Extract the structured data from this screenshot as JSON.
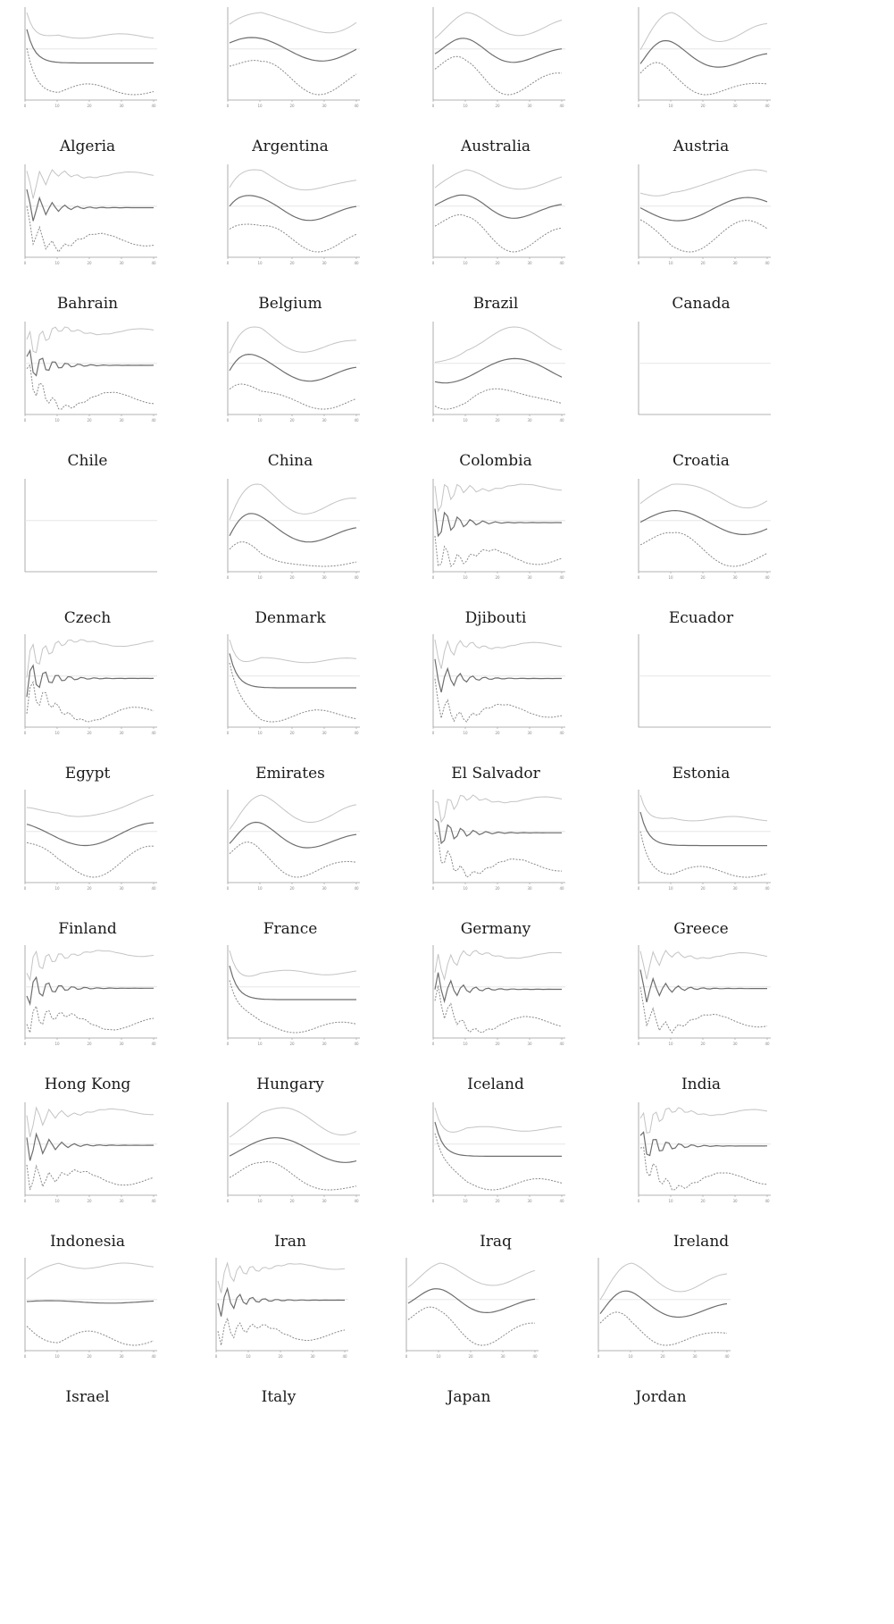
{
  "figure": {
    "colors": {
      "upper_band": "#c4c4c4",
      "response": "#6e6e6e",
      "lower_band": "#8a8a8a",
      "zero_line": "#e2e2e2",
      "axis": "#9a9a9a"
    }
  },
  "chart_data": [
    {
      "type": "line",
      "title": "Algeria",
      "xlim": [
        0,
        40
      ],
      "x_ticks": [
        0,
        10,
        20,
        30,
        40
      ],
      "shape": {
        "b": 0.42,
        "s": 0.38,
        "o": -1
      },
      "series": [
        {
          "name": "",
          "values": []
        },
        {
          "name": "",
          "values": []
        },
        {
          "name": "",
          "values": []
        }
      ]
    },
    {
      "type": "line",
      "title": "Argentina",
      "xlim": [
        0,
        40
      ],
      "x_ticks": [
        0,
        10,
        20,
        30,
        40
      ],
      "shape": {
        "b": 0.4,
        "s": 0.38,
        "o": 1
      }
    },
    {
      "type": "line",
      "title": "Australia",
      "xlim": [
        0,
        40
      ],
      "x_ticks": [
        0,
        10,
        20,
        30,
        40
      ],
      "shape": {
        "b": 0.4,
        "s": 0.38,
        "o": 2
      }
    },
    {
      "type": "line",
      "title": "Austria",
      "xlim": [
        0,
        40
      ],
      "x_ticks": [
        0,
        10,
        20,
        30,
        40
      ],
      "shape": {
        "b": 0.4,
        "s": 0.38,
        "o": 2
      }
    },
    {
      "type": "line",
      "title": "Bahrain",
      "xlim": [
        0,
        40
      ],
      "x_ticks": [
        0,
        10,
        20,
        30,
        40
      ],
      "shape": {
        "b": 0.4,
        "s": 0.38,
        "o": 3
      }
    },
    {
      "type": "line",
      "title": "Belgium",
      "xlim": [
        0,
        40
      ],
      "x_ticks": [
        0,
        10,
        20,
        30,
        40
      ],
      "shape": {
        "b": 0.4,
        "s": 0.38,
        "o": 2
      }
    },
    {
      "type": "line",
      "title": "Brazil",
      "xlim": [
        0,
        40
      ],
      "x_ticks": [
        0,
        10,
        20,
        30,
        40
      ],
      "shape": {
        "b": 0.4,
        "s": 0.38,
        "o": 2
      }
    },
    {
      "type": "line",
      "title": "Canada",
      "xlim": [
        0,
        40
      ],
      "x_ticks": [
        0,
        10,
        20,
        30,
        40
      ],
      "shape": {
        "b": 0.4,
        "s": 0.38,
        "o": 1
      }
    },
    {
      "type": "line",
      "title": "Chile",
      "xlim": [
        0,
        40
      ],
      "x_ticks": [
        0,
        10,
        20,
        30,
        40
      ],
      "shape": {
        "b": 0.4,
        "s": 0.38,
        "o": 3
      }
    },
    {
      "type": "line",
      "title": "China",
      "xlim": [
        0,
        40
      ],
      "x_ticks": [
        0,
        10,
        20,
        30,
        40
      ],
      "shape": {
        "b": 0.4,
        "s": 0.38,
        "o": 2
      }
    },
    {
      "type": "line",
      "title": "Colombia",
      "xlim": [
        0,
        40
      ],
      "x_ticks": [
        0,
        10,
        20,
        30,
        40
      ],
      "shape": {
        "b": 0.4,
        "s": 0.38,
        "o": 1
      }
    },
    {
      "type": "line",
      "title": "Croatia",
      "xlim": [
        0,
        40
      ],
      "x_ticks": [],
      "empty": true
    },
    {
      "type": "line",
      "title": "Czech",
      "xlim": [
        0,
        40
      ],
      "x_ticks": [],
      "empty": true
    },
    {
      "type": "line",
      "title": "Denmark",
      "xlim": [
        0,
        40
      ],
      "x_ticks": [
        0,
        10,
        20,
        30,
        40
      ],
      "shape": {
        "b": 0.4,
        "s": 0.38,
        "o": 2
      }
    },
    {
      "type": "line",
      "title": "Djibouti",
      "xlim": [
        0,
        40
      ],
      "x_ticks": [
        0,
        10,
        20,
        30,
        40
      ],
      "shape": {
        "b": 0.4,
        "s": 0.38,
        "o": 3
      }
    },
    {
      "type": "line",
      "title": "Ecuador",
      "xlim": [
        0,
        40
      ],
      "x_ticks": [
        0,
        10,
        20,
        30,
        40
      ],
      "shape": {
        "b": 0.4,
        "s": 0.38,
        "o": 1
      }
    },
    {
      "type": "line",
      "title": "Egypt",
      "xlim": [
        0,
        40
      ],
      "x_ticks": [
        0,
        10,
        20,
        30,
        40
      ],
      "shape": {
        "b": 0.4,
        "s": 0.38,
        "o": 3
      }
    },
    {
      "type": "line",
      "title": "Emirates",
      "xlim": [
        0,
        40
      ],
      "x_ticks": [
        0,
        10,
        20,
        30,
        40
      ],
      "shape": {
        "b": 0.4,
        "s": 0.38,
        "o": -1
      }
    },
    {
      "type": "line",
      "title": "El Salvador",
      "xlim": [
        0,
        40
      ],
      "x_ticks": [
        0,
        10,
        20,
        30,
        40
      ],
      "shape": {
        "b": 0.4,
        "s": 0.38,
        "o": 3
      }
    },
    {
      "type": "line",
      "title": "Estonia",
      "xlim": [
        0,
        40
      ],
      "x_ticks": [],
      "empty": true
    },
    {
      "type": "line",
      "title": "Finland",
      "xlim": [
        0,
        40
      ],
      "x_ticks": [
        0,
        10,
        20,
        30,
        40
      ],
      "shape": {
        "b": 0.4,
        "s": 0.38,
        "o": 1
      }
    },
    {
      "type": "line",
      "title": "France",
      "xlim": [
        0,
        40
      ],
      "x_ticks": [
        0,
        10,
        20,
        30,
        40
      ],
      "shape": {
        "b": 0.4,
        "s": 0.38,
        "o": 2
      }
    },
    {
      "type": "line",
      "title": "Germany",
      "xlim": [
        0,
        40
      ],
      "x_ticks": [
        0,
        10,
        20,
        30,
        40
      ],
      "shape": {
        "b": 0.4,
        "s": 0.38,
        "o": 3
      }
    },
    {
      "type": "line",
      "title": "Greece",
      "xlim": [
        0,
        40
      ],
      "x_ticks": [
        0,
        10,
        20,
        30,
        40
      ],
      "shape": {
        "b": 0.4,
        "s": 0.38,
        "o": -1
      }
    },
    {
      "type": "line",
      "title": "Hong Kong",
      "xlim": [
        0,
        40
      ],
      "x_ticks": [
        0,
        10,
        20,
        30,
        40
      ],
      "shape": {
        "b": 0.4,
        "s": 0.38,
        "o": 3
      }
    },
    {
      "type": "line",
      "title": "Hungary",
      "xlim": [
        0,
        40
      ],
      "x_ticks": [
        0,
        10,
        20,
        30,
        40
      ],
      "shape": {
        "b": 0.4,
        "s": 0.38,
        "o": -1
      }
    },
    {
      "type": "line",
      "title": "Iceland",
      "xlim": [
        0,
        40
      ],
      "x_ticks": [
        0,
        10,
        20,
        30,
        40
      ],
      "shape": {
        "b": 0.4,
        "s": 0.38,
        "o": 3
      }
    },
    {
      "type": "line",
      "title": "India",
      "xlim": [
        0,
        40
      ],
      "x_ticks": [
        0,
        10,
        20,
        30,
        40
      ],
      "shape": {
        "b": 0.4,
        "s": 0.38,
        "o": 3
      }
    },
    {
      "type": "line",
      "title": "Indonesia",
      "xlim": [
        0,
        40
      ],
      "x_ticks": [
        0,
        10,
        20,
        30,
        40
      ],
      "shape": {
        "b": 0.4,
        "s": 0.38,
        "o": 3
      }
    },
    {
      "type": "line",
      "title": "Iran",
      "xlim": [
        0,
        40
      ],
      "x_ticks": [
        0,
        10,
        20,
        30,
        40
      ],
      "shape": {
        "b": 0.4,
        "s": 0.38,
        "o": 1
      }
    },
    {
      "type": "line",
      "title": "Iraq",
      "xlim": [
        0,
        40
      ],
      "x_ticks": [
        0,
        10,
        20,
        30,
        40
      ],
      "shape": {
        "b": 0.4,
        "s": 0.38,
        "o": -1
      }
    },
    {
      "type": "line",
      "title": "Ireland",
      "xlim": [
        0,
        40
      ],
      "x_ticks": [
        0,
        10,
        20,
        30,
        40
      ],
      "shape": {
        "b": 0.4,
        "s": 0.38,
        "o": 3
      }
    },
    {
      "type": "line",
      "title": "Israel",
      "xlim": [
        0,
        40
      ],
      "x_ticks": [
        0,
        10,
        20,
        30,
        40
      ],
      "shape": {
        "b": 0.4,
        "s": 0.38,
        "o": -2
      }
    },
    {
      "type": "line",
      "title": "Italy",
      "xlim": [
        0,
        40
      ],
      "x_ticks": [
        0,
        10,
        20,
        30,
        40
      ],
      "shape": {
        "b": 0.4,
        "s": 0.38,
        "o": 3
      }
    },
    {
      "type": "line",
      "title": "Japan",
      "xlim": [
        0,
        40
      ],
      "x_ticks": [
        0,
        10,
        20,
        30,
        40
      ],
      "shape": {
        "b": 0.4,
        "s": 0.38,
        "o": 2
      }
    },
    {
      "type": "line",
      "title": "Jordan",
      "xlim": [
        0,
        40
      ],
      "x_ticks": [
        0,
        10,
        20,
        30,
        40
      ],
      "shape": {
        "b": 0.4,
        "s": 0.38,
        "o": 2
      }
    }
  ]
}
